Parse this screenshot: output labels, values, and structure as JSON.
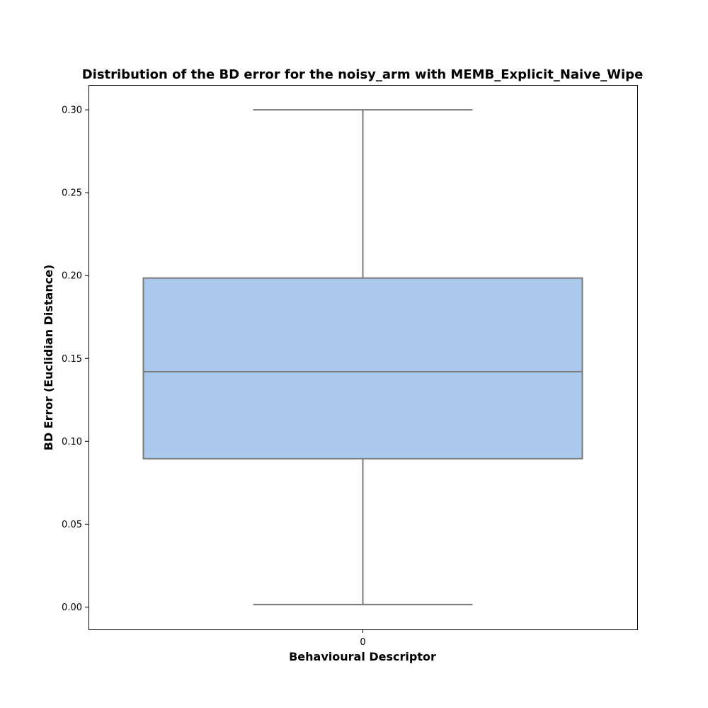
{
  "chart_data": {
    "type": "box",
    "title": "Distribution of the BD error for the noisy_arm with MEMB_Explicit_Naive_Wipe",
    "xlabel": "Behavioural Descriptor",
    "ylabel": "BD Error (Euclidian Distance)",
    "categories": [
      "0"
    ],
    "boxes": [
      {
        "category": "0",
        "whisker_low": 0.0015,
        "q1": 0.0895,
        "median": 0.142,
        "q3": 0.1985,
        "whisker_high": 0.3
      }
    ],
    "ylim": [
      -0.0135,
      0.315
    ],
    "yticks": [
      0.0,
      0.05,
      0.1,
      0.15,
      0.2,
      0.25,
      0.3
    ],
    "ytick_labels": [
      "0.00",
      "0.05",
      "0.10",
      "0.15",
      "0.20",
      "0.25",
      "0.30"
    ],
    "grid": false,
    "box_fill": "#abc9ed",
    "line_color": "#7a7a7a"
  }
}
